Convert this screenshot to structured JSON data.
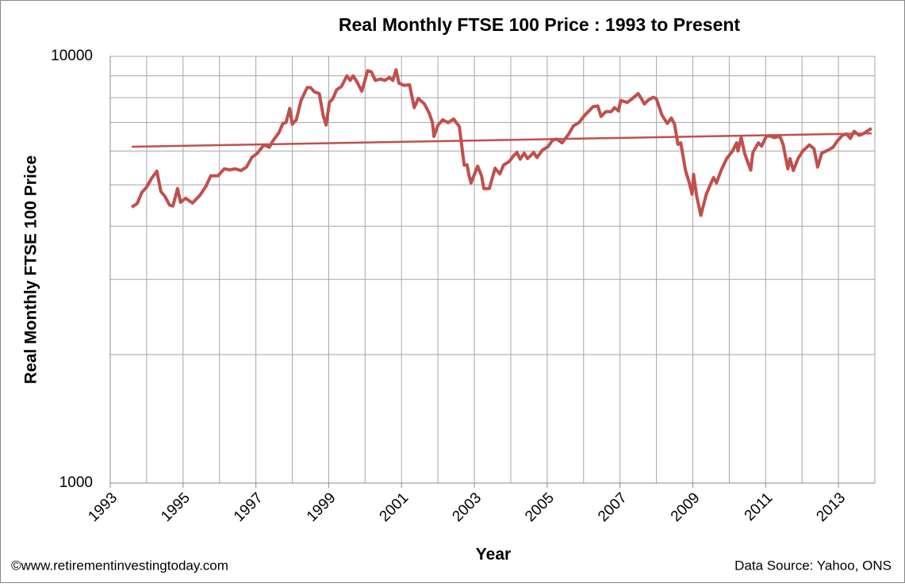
{
  "chart_data": {
    "type": "line",
    "title": "Real Monthly  FTSE 100 Price : 1993 to Present",
    "x_label": "Year",
    "y_label": "Real Monthly FTSE 100 Price",
    "annotations": [
      "©www.retirementinvestingtoday.com",
      "Data Source: Yahoo, ONS"
    ],
    "log_scale_y": true,
    "grid": true,
    "xlim": [
      1993,
      2014
    ],
    "xticks": [
      1993,
      1995,
      1997,
      1999,
      2001,
      2003,
      2005,
      2007,
      2009,
      2011,
      2013
    ],
    "xminor_ticks": [
      1994,
      1996,
      1998,
      2000,
      2002,
      2004,
      2006,
      2008,
      2010,
      2012,
      2014
    ],
    "ylim": [
      1000,
      10000
    ],
    "yticks": [
      1000,
      10000
    ],
    "yminor_ticks": [
      2000,
      3000,
      4000,
      5000,
      6000,
      7000,
      8000,
      9000
    ],
    "series": [
      {
        "color": "#c0504d",
        "width": 4,
        "x": [
          1993.59,
          1993.74,
          1993.87,
          1994.0,
          1994.15,
          1994.28,
          1994.39,
          1994.5,
          1994.63,
          1994.72,
          1994.85,
          1994.93,
          1995.07,
          1995.26,
          1995.46,
          1995.63,
          1995.76,
          1995.96,
          1996.13,
          1996.28,
          1996.43,
          1996.59,
          1996.74,
          1996.89,
          1997.04,
          1997.22,
          1997.37,
          1997.46,
          1997.63,
          1997.74,
          1997.83,
          1997.93,
          1998.0,
          1998.11,
          1998.24,
          1998.41,
          1998.5,
          1998.61,
          1998.74,
          1998.85,
          1998.93,
          1999.02,
          1999.11,
          1999.22,
          1999.35,
          1999.5,
          1999.59,
          1999.67,
          1999.78,
          1999.91,
          2000.07,
          2000.17,
          2000.28,
          2000.43,
          2000.54,
          2000.67,
          2000.76,
          2000.85,
          2000.93,
          2001.07,
          2001.22,
          2001.35,
          2001.46,
          2001.63,
          2001.76,
          2001.85,
          2001.89,
          2002.0,
          2002.13,
          2002.28,
          2002.43,
          2002.59,
          2002.72,
          2002.8,
          2002.85,
          2002.91,
          2003.09,
          2003.2,
          2003.26,
          2003.41,
          2003.57,
          2003.7,
          2003.8,
          2003.96,
          2004.07,
          2004.17,
          2004.26,
          2004.37,
          2004.46,
          2004.63,
          2004.72,
          2004.87,
          2005.02,
          2005.15,
          2005.26,
          2005.41,
          2005.59,
          2005.72,
          2005.87,
          2006.02,
          2006.15,
          2006.26,
          2006.39,
          2006.48,
          2006.61,
          2006.76,
          2006.85,
          2006.96,
          2007.02,
          2007.2,
          2007.33,
          2007.5,
          2007.59,
          2007.67,
          2007.76,
          2007.91,
          2008.0,
          2008.15,
          2008.3,
          2008.41,
          2008.5,
          2008.59,
          2008.67,
          2008.8,
          2008.89,
          2008.98,
          2009.02,
          2009.11,
          2009.22,
          2009.37,
          2009.48,
          2009.57,
          2009.65,
          2009.78,
          2009.93,
          2010.09,
          2010.2,
          2010.24,
          2010.33,
          2010.43,
          2010.59,
          2010.65,
          2010.8,
          2010.89,
          2011.02,
          2011.11,
          2011.24,
          2011.39,
          2011.48,
          2011.61,
          2011.67,
          2011.76,
          2011.89,
          2012.02,
          2012.2,
          2012.33,
          2012.43,
          2012.54,
          2012.72,
          2012.85,
          2012.96,
          2013.11,
          2013.22,
          2013.33,
          2013.43,
          2013.57,
          2013.67,
          2013.91
        ],
        "values": [
          4430,
          4520,
          4800,
          4940,
          5200,
          5380,
          4820,
          4700,
          4480,
          4460,
          4900,
          4550,
          4650,
          4530,
          4720,
          4960,
          5250,
          5250,
          5450,
          5420,
          5450,
          5400,
          5500,
          5800,
          5930,
          6200,
          6120,
          6320,
          6620,
          6960,
          7000,
          7550,
          6930,
          7100,
          7880,
          8450,
          8450,
          8250,
          8180,
          7260,
          6900,
          7800,
          7950,
          8350,
          8500,
          9000,
          8780,
          9000,
          8700,
          8280,
          9250,
          9200,
          8780,
          8850,
          8780,
          8920,
          8780,
          9300,
          8650,
          8550,
          8580,
          7580,
          7970,
          7730,
          7360,
          6990,
          6490,
          6890,
          7100,
          6990,
          7130,
          6840,
          5560,
          5570,
          5270,
          5050,
          5530,
          5240,
          4900,
          4900,
          5470,
          5300,
          5560,
          5670,
          5840,
          5950,
          5740,
          5930,
          5760,
          5950,
          5790,
          6030,
          6140,
          6360,
          6400,
          6270,
          6570,
          6870,
          6990,
          7260,
          7450,
          7620,
          7650,
          7230,
          7420,
          7420,
          7580,
          7450,
          7880,
          7800,
          7950,
          8180,
          7950,
          7730,
          7880,
          8020,
          7950,
          7290,
          6960,
          7170,
          6930,
          6220,
          6270,
          5400,
          5100,
          4750,
          5290,
          4690,
          4240,
          4750,
          5000,
          5200,
          5050,
          5410,
          5760,
          6000,
          6270,
          6000,
          6450,
          5900,
          5410,
          5950,
          6270,
          6160,
          6500,
          6510,
          6450,
          6500,
          6220,
          5450,
          5760,
          5400,
          5760,
          6000,
          6200,
          6070,
          5500,
          5930,
          6030,
          6120,
          6320,
          6530,
          6580,
          6420,
          6670,
          6530,
          6580,
          6780
        ]
      },
      {
        "color": "#c0504d",
        "width": 2.5,
        "x": [
          1993.59,
          2013.91
        ],
        "values": [
          6140,
          6600
        ]
      }
    ]
  }
}
